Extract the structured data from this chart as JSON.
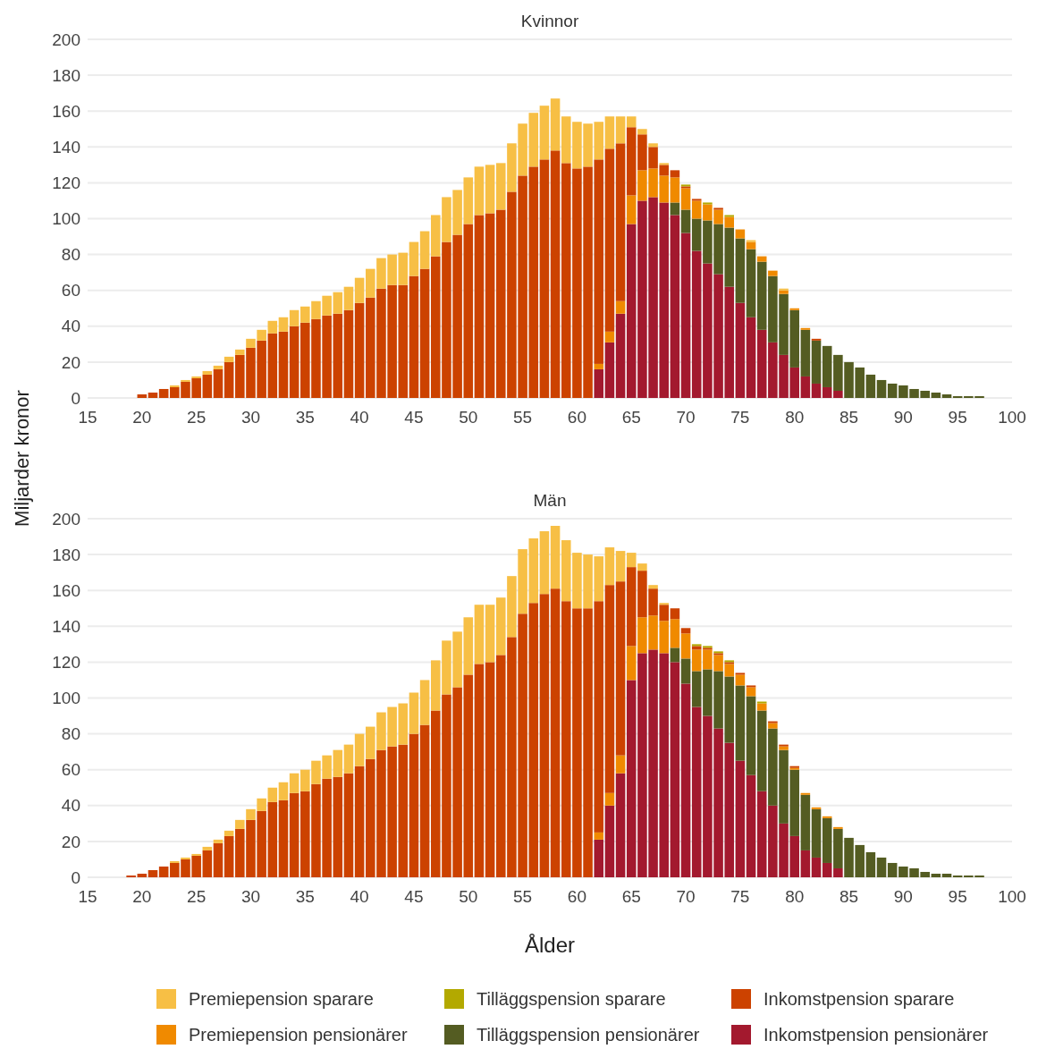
{
  "chart_data": [
    {
      "type": "bar",
      "title": "Kvinnor",
      "stacked": true,
      "grid": "y",
      "x": [
        20,
        21,
        22,
        23,
        24,
        25,
        26,
        27,
        28,
        29,
        30,
        31,
        32,
        33,
        34,
        35,
        36,
        37,
        38,
        39,
        40,
        41,
        42,
        43,
        44,
        45,
        46,
        47,
        48,
        49,
        50,
        51,
        52,
        53,
        54,
        55,
        56,
        57,
        58,
        59,
        60,
        61,
        62,
        63,
        64,
        65,
        66,
        67,
        68,
        69,
        70,
        71,
        72,
        73,
        74,
        75,
        76,
        77,
        78,
        79,
        80,
        81,
        82,
        83,
        84,
        85,
        86,
        87,
        88,
        89,
        90,
        91,
        92,
        93,
        94,
        95,
        96,
        97
      ],
      "xlim": [
        15,
        100
      ],
      "xticks": [
        15,
        20,
        25,
        30,
        35,
        40,
        45,
        50,
        55,
        60,
        65,
        70,
        75,
        80,
        85,
        90,
        95,
        100
      ],
      "ylim": [
        0,
        200
      ],
      "yticks": [
        0,
        20,
        40,
        60,
        80,
        100,
        120,
        140,
        160,
        180,
        200
      ],
      "series": [
        {
          "color": "#a3192e",
          "values": [
            null,
            null,
            null,
            null,
            null,
            null,
            null,
            null,
            null,
            null,
            null,
            null,
            null,
            null,
            null,
            null,
            null,
            null,
            null,
            null,
            null,
            null,
            null,
            null,
            null,
            null,
            null,
            null,
            null,
            null,
            null,
            null,
            null,
            null,
            null,
            null,
            null,
            null,
            null,
            null,
            null,
            null,
            16,
            31,
            47,
            97,
            110,
            112,
            109,
            102,
            92,
            82,
            75,
            69,
            62,
            53,
            45,
            38,
            31,
            24,
            17,
            12,
            8,
            6,
            4,
            null,
            null,
            null,
            null,
            null,
            null,
            null,
            null,
            null,
            null,
            null,
            null,
            null
          ]
        },
        {
          "color": "#545c22",
          "values": [
            null,
            null,
            null,
            null,
            null,
            null,
            null,
            null,
            null,
            null,
            null,
            null,
            null,
            null,
            null,
            null,
            null,
            null,
            null,
            null,
            null,
            null,
            null,
            null,
            null,
            null,
            null,
            null,
            null,
            null,
            null,
            null,
            null,
            null,
            null,
            null,
            null,
            null,
            null,
            null,
            null,
            null,
            null,
            null,
            null,
            null,
            null,
            null,
            null,
            7,
            13,
            18,
            24,
            28,
            33,
            36,
            38,
            38,
            37,
            34,
            32,
            26,
            24,
            23,
            20,
            20,
            17,
            13,
            10,
            8,
            7,
            5,
            4,
            3,
            2,
            1,
            1,
            1
          ]
        },
        {
          "color": "#f08a00",
          "values": [
            null,
            null,
            null,
            null,
            null,
            null,
            null,
            null,
            null,
            null,
            null,
            null,
            null,
            null,
            null,
            null,
            null,
            null,
            null,
            null,
            null,
            null,
            null,
            null,
            null,
            null,
            null,
            null,
            null,
            null,
            null,
            null,
            null,
            null,
            null,
            null,
            null,
            null,
            null,
            null,
            null,
            null,
            3,
            6,
            7,
            16,
            17,
            16,
            15,
            14,
            12,
            10,
            9,
            8,
            6,
            5,
            4,
            3,
            3,
            2,
            1,
            1,
            null,
            null,
            null,
            null,
            null,
            null,
            null,
            null,
            null,
            null,
            null,
            null,
            null,
            null,
            null,
            null
          ]
        },
        {
          "color": "#cc4200",
          "values": [
            2,
            3,
            5,
            6,
            9,
            11,
            13,
            16,
            20,
            24,
            28,
            32,
            36,
            37,
            40,
            42,
            44,
            46,
            47,
            49,
            53,
            56,
            61,
            63,
            63,
            68,
            72,
            79,
            87,
            91,
            97,
            102,
            103,
            105,
            115,
            124,
            129,
            133,
            138,
            131,
            128,
            129,
            114,
            102,
            88,
            38,
            20,
            12,
            6,
            4,
            1,
            1,
            null,
            1,
            null,
            null,
            null,
            null,
            null,
            null,
            null,
            null,
            1,
            null,
            null,
            null,
            null,
            null,
            null,
            null,
            null,
            null,
            null,
            null,
            null,
            null,
            null,
            null
          ]
        },
        {
          "color": "#b3a900",
          "values": [
            null,
            null,
            null,
            null,
            null,
            null,
            null,
            null,
            null,
            null,
            null,
            null,
            null,
            null,
            null,
            null,
            null,
            null,
            null,
            null,
            null,
            null,
            null,
            null,
            null,
            null,
            null,
            null,
            null,
            null,
            null,
            null,
            null,
            null,
            null,
            null,
            null,
            null,
            null,
            null,
            null,
            null,
            null,
            null,
            null,
            null,
            null,
            null,
            null,
            null,
            1,
            null,
            1,
            null,
            1,
            null,
            null,
            null,
            null,
            null,
            null,
            null,
            null,
            null,
            null,
            null,
            null,
            null,
            null,
            null,
            null,
            null,
            null,
            null,
            null,
            null,
            null,
            null
          ]
        },
        {
          "color": "#f7bf45",
          "values": [
            null,
            null,
            null,
            1,
            1,
            1,
            2,
            2,
            3,
            3,
            5,
            6,
            7,
            8,
            9,
            9,
            10,
            11,
            12,
            13,
            14,
            16,
            17,
            17,
            18,
            19,
            21,
            23,
            25,
            25,
            26,
            27,
            27,
            26,
            27,
            29,
            30,
            30,
            29,
            26,
            26,
            24,
            21,
            18,
            15,
            6,
            3,
            2,
            1,
            null,
            null,
            null,
            null,
            null,
            null,
            null,
            1,
            null,
            null,
            1,
            null,
            null,
            null,
            null,
            null,
            null,
            null,
            null,
            null,
            null,
            null,
            null,
            null,
            null,
            null,
            null,
            null,
            null
          ]
        }
      ]
    },
    {
      "type": "bar",
      "title": "Män",
      "stacked": true,
      "grid": "y",
      "xlabel": "Ålder",
      "ylabel": "Miljarder kronor",
      "legend": "bottom",
      "x": [
        19,
        20,
        21,
        22,
        23,
        24,
        25,
        26,
        27,
        28,
        29,
        30,
        31,
        32,
        33,
        34,
        35,
        36,
        37,
        38,
        39,
        40,
        41,
        42,
        43,
        44,
        45,
        46,
        47,
        48,
        49,
        50,
        51,
        52,
        53,
        54,
        55,
        56,
        57,
        58,
        59,
        60,
        61,
        62,
        63,
        64,
        65,
        66,
        67,
        68,
        69,
        70,
        71,
        72,
        73,
        74,
        75,
        76,
        77,
        78,
        79,
        80,
        81,
        82,
        83,
        84,
        85,
        86,
        87,
        88,
        89,
        90,
        91,
        92,
        93,
        94,
        95,
        96,
        97
      ],
      "xlim": [
        15,
        100
      ],
      "xticks": [
        15,
        20,
        25,
        30,
        35,
        40,
        45,
        50,
        55,
        60,
        65,
        70,
        75,
        80,
        85,
        90,
        95,
        100
      ],
      "ylim": [
        0,
        200
      ],
      "yticks": [
        0,
        20,
        40,
        60,
        80,
        100,
        120,
        140,
        160,
        180,
        200
      ],
      "series": [
        {
          "name": "Inkomstpension pensionärer",
          "color": "#a3192e",
          "values": [
            null,
            null,
            null,
            null,
            null,
            null,
            null,
            null,
            null,
            null,
            null,
            null,
            null,
            null,
            null,
            null,
            null,
            null,
            null,
            null,
            null,
            null,
            null,
            null,
            null,
            null,
            null,
            null,
            null,
            null,
            null,
            null,
            null,
            null,
            null,
            null,
            null,
            null,
            null,
            null,
            null,
            null,
            null,
            21,
            40,
            58,
            110,
            125,
            127,
            125,
            120,
            108,
            95,
            90,
            83,
            75,
            65,
            57,
            48,
            40,
            30,
            23,
            15,
            11,
            8,
            5,
            null,
            null,
            null,
            null,
            null,
            null,
            null,
            null,
            null,
            null,
            null,
            null,
            null
          ]
        },
        {
          "name": "Tilläggspension pensionärer",
          "color": "#545c22",
          "values": [
            null,
            null,
            null,
            null,
            null,
            null,
            null,
            null,
            null,
            null,
            null,
            null,
            null,
            null,
            null,
            null,
            null,
            null,
            null,
            null,
            null,
            null,
            null,
            null,
            null,
            null,
            null,
            null,
            null,
            null,
            null,
            null,
            null,
            null,
            null,
            null,
            null,
            null,
            null,
            null,
            null,
            null,
            null,
            null,
            null,
            null,
            null,
            null,
            null,
            null,
            8,
            14,
            20,
            26,
            32,
            37,
            42,
            44,
            45,
            43,
            41,
            37,
            31,
            27,
            25,
            22,
            22,
            18,
            14,
            11,
            8,
            6,
            5,
            3,
            2,
            2,
            1,
            1,
            1
          ]
        },
        {
          "name": "Premiepension pensionärer",
          "color": "#f08a00",
          "values": [
            null,
            null,
            null,
            null,
            null,
            null,
            null,
            null,
            null,
            null,
            null,
            null,
            null,
            null,
            null,
            null,
            null,
            null,
            null,
            null,
            null,
            null,
            null,
            null,
            null,
            null,
            null,
            null,
            null,
            null,
            null,
            null,
            null,
            null,
            null,
            null,
            null,
            null,
            null,
            null,
            null,
            null,
            null,
            4,
            7,
            10,
            19,
            20,
            19,
            18,
            16,
            14,
            12,
            11,
            9,
            7,
            6,
            5,
            4,
            3,
            2,
            1,
            1,
            1,
            1,
            1,
            null,
            null,
            null,
            null,
            null,
            null,
            null,
            null,
            null,
            null,
            null,
            null,
            null
          ]
        },
        {
          "name": "Inkomstpension sparare",
          "color": "#cc4200",
          "values": [
            1,
            2,
            4,
            6,
            8,
            10,
            12,
            15,
            19,
            23,
            27,
            32,
            37,
            42,
            43,
            47,
            48,
            52,
            55,
            56,
            58,
            62,
            66,
            71,
            73,
            74,
            80,
            85,
            93,
            102,
            106,
            113,
            119,
            120,
            124,
            134,
            147,
            153,
            158,
            161,
            154,
            150,
            150,
            129,
            116,
            97,
            44,
            26,
            15,
            9,
            6,
            3,
            2,
            1,
            1,
            1,
            1,
            1,
            null,
            1,
            1,
            1,
            null,
            null,
            null,
            null,
            null,
            null,
            null,
            null,
            null,
            null,
            null,
            null,
            null,
            null,
            null,
            null,
            null
          ]
        },
        {
          "name": "Tilläggspension sparare",
          "color": "#b3a900",
          "values": [
            null,
            null,
            null,
            null,
            null,
            null,
            null,
            null,
            null,
            null,
            null,
            null,
            null,
            null,
            null,
            null,
            null,
            null,
            null,
            null,
            null,
            null,
            null,
            null,
            null,
            null,
            null,
            null,
            null,
            null,
            null,
            null,
            null,
            null,
            null,
            null,
            null,
            null,
            null,
            null,
            null,
            null,
            null,
            null,
            null,
            null,
            null,
            null,
            null,
            null,
            null,
            null,
            1,
            1,
            1,
            1,
            null,
            null,
            1,
            null,
            null,
            null,
            null,
            null,
            null,
            null,
            null,
            null,
            null,
            null,
            null,
            null,
            null,
            null,
            null,
            null,
            null,
            null,
            null
          ]
        },
        {
          "name": "Premiepension sparare",
          "color": "#f7bf45",
          "values": [
            null,
            null,
            null,
            null,
            1,
            1,
            1,
            2,
            2,
            3,
            5,
            6,
            7,
            8,
            10,
            11,
            12,
            13,
            13,
            15,
            16,
            18,
            18,
            21,
            22,
            23,
            23,
            25,
            28,
            30,
            31,
            32,
            33,
            32,
            32,
            34,
            36,
            36,
            35,
            35,
            34,
            31,
            30,
            25,
            21,
            17,
            8,
            4,
            2,
            1,
            null,
            null,
            null,
            null,
            null,
            null,
            null,
            null,
            null,
            null,
            null,
            null,
            null,
            null,
            null,
            null,
            null,
            null,
            null,
            null,
            null,
            null,
            null,
            null,
            null,
            null,
            null,
            null,
            null
          ]
        }
      ]
    }
  ]
}
